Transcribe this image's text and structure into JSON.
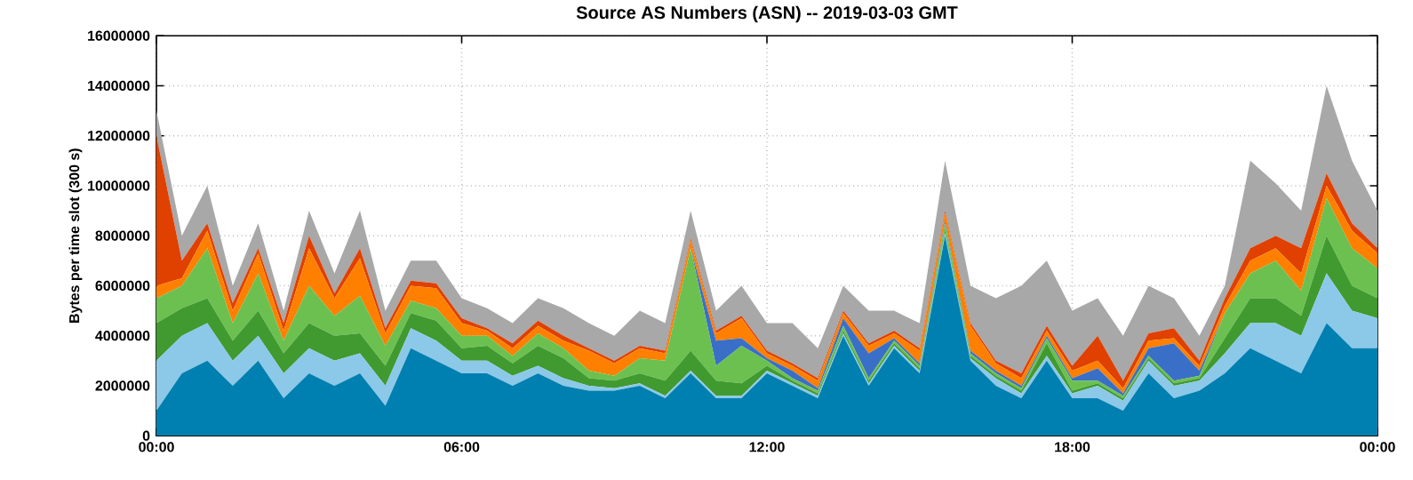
{
  "chart_data": {
    "type": "area",
    "stacked": true,
    "title": "Source AS Numbers (ASN) -- 2019-03-03 GMT",
    "ylabel": "Bytes per time slot (300 s)",
    "x": [
      0,
      0.5,
      1,
      1.5,
      2,
      2.5,
      3,
      3.5,
      4,
      4.5,
      5,
      5.5,
      6,
      6.5,
      7,
      7.5,
      8,
      8.5,
      9,
      9.5,
      10,
      10.5,
      11,
      11.5,
      12,
      12.5,
      13,
      13.5,
      14,
      14.5,
      15,
      15.5,
      16,
      16.5,
      17,
      17.5,
      18,
      18.5,
      19,
      19.5,
      20,
      20.5,
      21,
      21.5,
      22,
      22.5,
      23,
      23.5,
      24
    ],
    "xlim": [
      0,
      24
    ],
    "xticks": [
      {
        "value": 0,
        "label": "00:00"
      },
      {
        "value": 6,
        "label": "06:00"
      },
      {
        "value": 12,
        "label": "12:00"
      },
      {
        "value": 18,
        "label": "18:00"
      },
      {
        "value": 24,
        "label": "00:00"
      }
    ],
    "ylim": [
      0,
      16000000
    ],
    "yticks": [
      0,
      2000000,
      4000000,
      6000000,
      8000000,
      10000000,
      12000000,
      14000000,
      16000000
    ],
    "grid": true,
    "series": [
      {
        "color": "#0080b0",
        "values": [
          1000000.0,
          2500000.0,
          3000000.0,
          2000000.0,
          3000000.0,
          1500000.0,
          2500000.0,
          2000000.0,
          2500000.0,
          1200000.0,
          3500000.0,
          3000000.0,
          2500000.0,
          2500000.0,
          2000000.0,
          2500000.0,
          2000000.0,
          1800000.0,
          1800000.0,
          2000000.0,
          1500000.0,
          2500000.0,
          1500000.0,
          1500000.0,
          2500000.0,
          2000000.0,
          1500000.0,
          4000000.0,
          2000000.0,
          3500000.0,
          2500000.0,
          8000000.0,
          3000000.0,
          2000000.0,
          1500000.0,
          3000000.0,
          1500000.0,
          1500000.0,
          1000000.0,
          2500000.0,
          1500000.0,
          1800000.0,
          2500000.0,
          3500000.0,
          3000000.0,
          2500000.0,
          4500000.0,
          3500000.0,
          3500000.0
        ]
      },
      {
        "color": "#8cc8e8",
        "values": [
          2000000.0,
          1500000.0,
          1500000.0,
          1000000.0,
          1000000.0,
          1000000.0,
          1000000.0,
          1000000.0,
          800000.0,
          800000.0,
          800000.0,
          800000.0,
          500000.0,
          500000.0,
          400000.0,
          300000.0,
          300000.0,
          200000.0,
          100000.0,
          100000.0,
          100000.0,
          100000.0,
          100000.0,
          100000.0,
          100000.0,
          100000.0,
          100000.0,
          100000.0,
          100000.0,
          100000.0,
          100000.0,
          100000.0,
          100000.0,
          300000.0,
          200000.0,
          200000.0,
          200000.0,
          500000.0,
          400000.0,
          500000.0,
          500000.0,
          400000.0,
          800000.0,
          1000000.0,
          1500000.0,
          1500000.0,
          2000000.0,
          1500000.0,
          1200000.0
        ]
      },
      {
        "color": "#409a30",
        "values": [
          1500000.0,
          1100000.0,
          1000000.0,
          800000.0,
          1000000.0,
          800000.0,
          1000000.0,
          1000000.0,
          800000.0,
          800000.0,
          600000.0,
          800000.0,
          500000.0,
          600000.0,
          500000.0,
          800000.0,
          800000.0,
          300000.0,
          300000.0,
          400000.0,
          600000.0,
          800000.0,
          600000.0,
          500000.0,
          200000.0,
          100000.0,
          100000.0,
          100000.0,
          100000.0,
          100000.0,
          100000.0,
          100000.0,
          100000.0,
          100000.0,
          100000.0,
          500000.0,
          100000.0,
          100000.0,
          100000.0,
          100000.0,
          100000.0,
          100000.0,
          600000.0,
          1000000.0,
          1000000.0,
          800000.0,
          1500000.0,
          1000000.0,
          800000.0
        ]
      },
      {
        "color": "#6cc050",
        "values": [
          1000000.0,
          900000.0,
          2000000.0,
          700000.0,
          1500000.0,
          500000.0,
          1500000.0,
          800000.0,
          1500000.0,
          800000.0,
          500000.0,
          500000.0,
          500000.0,
          400000.0,
          300000.0,
          500000.0,
          400000.0,
          300000.0,
          200000.0,
          600000.0,
          800000.0,
          4100000.0,
          600000.0,
          1500000.0,
          200000.0,
          100000.0,
          100000.0,
          200000.0,
          100000.0,
          100000.0,
          100000.0,
          300000.0,
          100000.0,
          100000.0,
          100000.0,
          200000.0,
          400000.0,
          100000.0,
          100000.0,
          100000.0,
          100000.0,
          100000.0,
          1000000.0,
          1000000.0,
          1500000.0,
          1000000.0,
          1500000.0,
          1500000.0,
          1200000.0
        ]
      },
      {
        "color": "#3a6fc8",
        "values": [
          0,
          0,
          0,
          0,
          0,
          0,
          0,
          0,
          0,
          0,
          0,
          0,
          0,
          0,
          0,
          0,
          0,
          0,
          0,
          0,
          0,
          0,
          1000000.0,
          300000.0,
          100000.0,
          300000.0,
          100000.0,
          300000.0,
          1000000.0,
          100000.0,
          100000.0,
          100000.0,
          100000.0,
          100000.0,
          100000.0,
          100000.0,
          100000.0,
          500000.0,
          100000.0,
          300000.0,
          1500000.0,
          200000.0,
          0,
          0,
          0,
          0,
          0,
          0,
          0
        ]
      },
      {
        "color": "#ff8000",
        "values": [
          500000.0,
          300000.0,
          700000.0,
          500000.0,
          800000.0,
          400000.0,
          1500000.0,
          700000.0,
          1500000.0,
          500000.0,
          600000.0,
          800000.0,
          500000.0,
          200000.0,
          300000.0,
          300000.0,
          300000.0,
          800000.0,
          500000.0,
          400000.0,
          300000.0,
          300000.0,
          300000.0,
          800000.0,
          200000.0,
          200000.0,
          300000.0,
          200000.0,
          300000.0,
          200000.0,
          500000.0,
          300000.0,
          1000000.0,
          300000.0,
          300000.0,
          200000.0,
          300000.0,
          300000.0,
          200000.0,
          300000.0,
          200000.0,
          200000.0,
          300000.0,
          500000.0,
          500000.0,
          700000.0,
          500000.0,
          700000.0,
          600000.0
        ]
      },
      {
        "color": "#e04000",
        "values": [
          6000000.0,
          700000.0,
          300000.0,
          300000.0,
          200000.0,
          300000.0,
          500000.0,
          200000.0,
          400000.0,
          200000.0,
          200000.0,
          200000.0,
          200000.0,
          100000.0,
          200000.0,
          200000.0,
          200000.0,
          100000.0,
          100000.0,
          100000.0,
          100000.0,
          100000.0,
          100000.0,
          100000.0,
          100000.0,
          100000.0,
          100000.0,
          100000.0,
          100000.0,
          100000.0,
          100000.0,
          100000.0,
          100000.0,
          100000.0,
          200000.0,
          200000.0,
          200000.0,
          1000000.0,
          300000.0,
          300000.0,
          400000.0,
          200000.0,
          300000.0,
          500000.0,
          500000.0,
          1000000.0,
          500000.0,
          300000.0,
          200000.0
        ]
      },
      {
        "color": "#a8a8a8",
        "values": [
          1000000.0,
          1000000.0,
          1500000.0,
          700000.0,
          1000000.0,
          500000.0,
          1000000.0,
          800000.0,
          1500000.0,
          700000.0,
          800000.0,
          900000.0,
          800000.0,
          800000.0,
          800000.0,
          900000.0,
          1100000.0,
          1000000.0,
          1000000.0,
          1400000.0,
          1100000.0,
          1100000.0,
          800000.0,
          1200000.0,
          1100000.0,
          1600000.0,
          1200000.0,
          1000000.0,
          1300000.0,
          800000.0,
          1000000.0,
          2000000.0,
          1500000.0,
          2500000.0,
          3500000.0,
          2600000.0,
          2200000.0,
          1500000.0,
          1800000.0,
          1900000.0,
          1200000.0,
          1000000.0,
          500000.0,
          3500000.0,
          2100000.0,
          1500000.0,
          3500000.0,
          2500000.0,
          1500000.0
        ]
      }
    ]
  }
}
